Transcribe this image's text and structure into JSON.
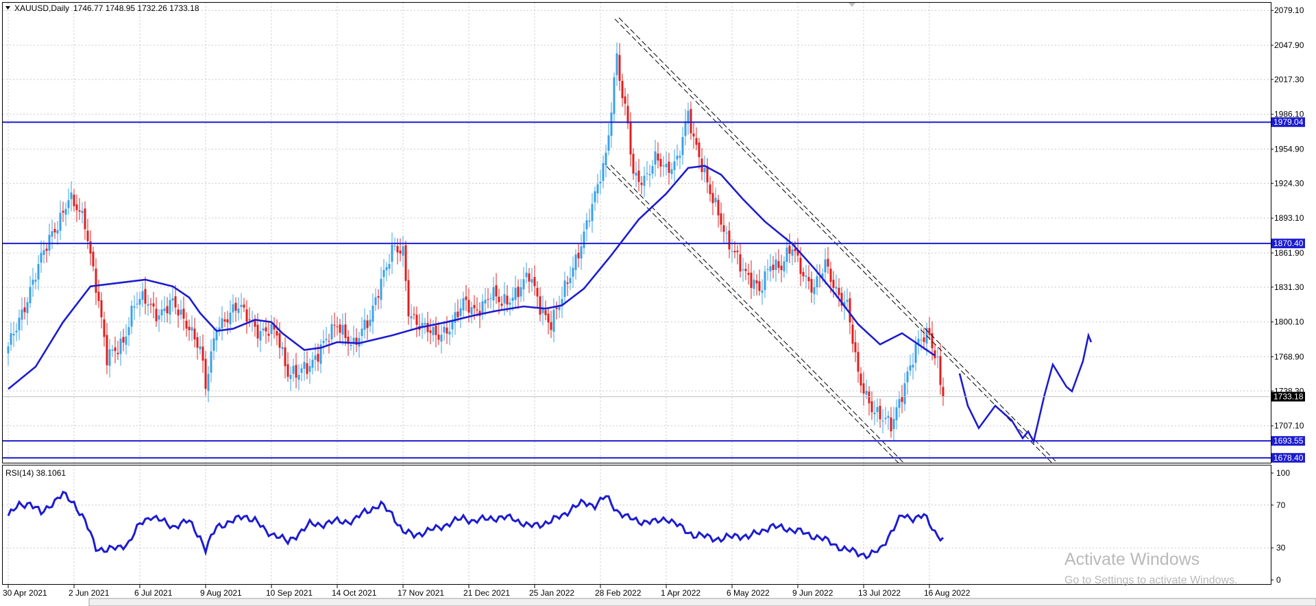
{
  "header": {
    "symbol": "XAUUSD,Daily",
    "ohlc": "1746.77 1748.95 1732.26 1733.18"
  },
  "rsi_header": "RSI(14) 38.1061",
  "watermark": {
    "line1": "Activate Windows",
    "line2": "Go to Settings to activate Windows."
  },
  "colors": {
    "bull": "#3aa0e8",
    "bear": "#e01e1e",
    "ma": "#1c1ccf",
    "level": "#1c1ccf",
    "price_tag_bg": "#000000",
    "grid": "#c8c8c8"
  },
  "chart_data": [
    {
      "type": "candlestick",
      "symbol": "XAUUSD",
      "timeframe": "Daily",
      "y_ticks": [
        "2079.10",
        "2047.90",
        "2017.30",
        "1986.10",
        "1954.90",
        "1924.30",
        "1893.10",
        "1861.90",
        "1831.30",
        "1800.10",
        "1768.90",
        "1738.30",
        "1707.10"
      ],
      "ylim": [
        1674,
        2086
      ],
      "x_ticks": [
        "30 Apr 2021",
        "2 Jun 2021",
        "6 Jul 2021",
        "9 Aug 2021",
        "10 Sep 2021",
        "14 Oct 2021",
        "17 Nov 2021",
        "21 Dec 2021",
        "25 Jan 2022",
        "28 Feb 2022",
        "1 Apr 2022",
        "6 May 2022",
        "9 Jun 2022",
        "13 Jul 2022",
        "16 Aug 2022"
      ],
      "x_tick_index": [
        0,
        24,
        48,
        72,
        96,
        120,
        144,
        168,
        192,
        216,
        240,
        264,
        288,
        312,
        336
      ],
      "last_price": "1733.18",
      "horizontal_levels": [
        {
          "value": 1979.04,
          "label": "1979.04"
        },
        {
          "value": 1870.4,
          "label": "1870.40"
        },
        {
          "value": 1693.55,
          "label": "1693.55"
        },
        {
          "value": 1678.4,
          "label": "1678.40"
        }
      ],
      "series": [
        {
          "kind": "close_keypoints",
          "points": [
            [
              0,
              1775
            ],
            [
              8,
              1830
            ],
            [
              16,
              1880
            ],
            [
              22,
              1910
            ],
            [
              28,
              1890
            ],
            [
              32,
              1835
            ],
            [
              36,
              1765
            ],
            [
              42,
              1785
            ],
            [
              46,
              1815
            ],
            [
              50,
              1820
            ],
            [
              55,
              1808
            ],
            [
              60,
              1815
            ],
            [
              66,
              1798
            ],
            [
              70,
              1775
            ],
            [
              72,
              1740
            ],
            [
              76,
              1798
            ],
            [
              80,
              1805
            ],
            [
              84,
              1812
            ],
            [
              88,
              1805
            ],
            [
              92,
              1790
            ],
            [
              98,
              1790
            ],
            [
              102,
              1757
            ],
            [
              106,
              1752
            ],
            [
              110,
              1760
            ],
            [
              114,
              1780
            ],
            [
              120,
              1795
            ],
            [
              126,
              1782
            ],
            [
              132,
              1800
            ],
            [
              136,
              1840
            ],
            [
              140,
              1865
            ],
            [
              144,
              1860
            ],
            [
              146,
              1810
            ],
            [
              152,
              1795
            ],
            [
              156,
              1785
            ],
            [
              160,
              1795
            ],
            [
              166,
              1815
            ],
            [
              170,
              1810
            ],
            [
              176,
              1825
            ],
            [
              180,
              1815
            ],
            [
              184,
              1825
            ],
            [
              190,
              1840
            ],
            [
              194,
              1815
            ],
            [
              198,
              1800
            ],
            [
              202,
              1820
            ],
            [
              206,
              1850
            ],
            [
              210,
              1880
            ],
            [
              214,
              1910
            ],
            [
              218,
              1950
            ],
            [
              222,
              2040
            ],
            [
              224,
              2000
            ],
            [
              226,
              1975
            ],
            [
              228,
              1930
            ],
            [
              232,
              1930
            ],
            [
              236,
              1945
            ],
            [
              240,
              1935
            ],
            [
              244,
              1948
            ],
            [
              248,
              1985
            ],
            [
              250,
              1960
            ],
            [
              254,
              1935
            ],
            [
              258,
              1905
            ],
            [
              262,
              1870
            ],
            [
              266,
              1860
            ],
            [
              270,
              1840
            ],
            [
              274,
              1825
            ],
            [
              278,
              1855
            ],
            [
              282,
              1850
            ],
            [
              286,
              1865
            ],
            [
              290,
              1845
            ],
            [
              294,
              1830
            ],
            [
              298,
              1850
            ],
            [
              302,
              1830
            ],
            [
              306,
              1815
            ],
            [
              310,
              1750
            ],
            [
              314,
              1730
            ],
            [
              318,
              1715
            ],
            [
              322,
              1705
            ],
            [
              325,
              1730
            ],
            [
              328,
              1755
            ],
            [
              332,
              1780
            ],
            [
              336,
              1790
            ],
            [
              339,
              1765
            ],
            [
              341,
              1733
            ]
          ]
        },
        {
          "kind": "moving_average",
          "points": [
            [
              0,
              1740
            ],
            [
              10,
              1760
            ],
            [
              20,
              1800
            ],
            [
              30,
              1832
            ],
            [
              40,
              1835
            ],
            [
              50,
              1838
            ],
            [
              60,
              1832
            ],
            [
              66,
              1822
            ],
            [
              70,
              1808
            ],
            [
              76,
              1792
            ],
            [
              82,
              1794
            ],
            [
              90,
              1802
            ],
            [
              96,
              1800
            ],
            [
              100,
              1790
            ],
            [
              108,
              1775
            ],
            [
              114,
              1777
            ],
            [
              120,
              1782
            ],
            [
              128,
              1781
            ],
            [
              140,
              1788
            ],
            [
              150,
              1795
            ],
            [
              160,
              1800
            ],
            [
              170,
              1806
            ],
            [
              178,
              1810
            ],
            [
              188,
              1814
            ],
            [
              196,
              1812
            ],
            [
              202,
              1815
            ],
            [
              210,
              1830
            ],
            [
              220,
              1860
            ],
            [
              230,
              1892
            ],
            [
              240,
              1915
            ],
            [
              248,
              1938
            ],
            [
              254,
              1940
            ],
            [
              260,
              1932
            ],
            [
              268,
              1910
            ],
            [
              276,
              1890
            ],
            [
              286,
              1870
            ],
            [
              294,
              1848
            ],
            [
              302,
              1824
            ],
            [
              310,
              1798
            ],
            [
              318,
              1780
            ],
            [
              326,
              1790
            ],
            [
              332,
              1780
            ],
            [
              338,
              1770
            ]
          ]
        }
      ],
      "channel": [
        {
          "from": [
            222,
            2072
          ],
          "to": [
            382,
            1673
          ]
        },
        {
          "from": [
            219,
            1940
          ],
          "to": [
            326,
            1673
          ]
        }
      ],
      "forecast_path": [
        [
          347,
          1754
        ],
        [
          350,
          1725
        ],
        [
          354,
          1705
        ],
        [
          360,
          1725
        ],
        [
          366,
          1712
        ],
        [
          370,
          1696
        ],
        [
          372,
          1702
        ],
        [
          374,
          1693
        ],
        [
          378,
          1735
        ],
        [
          381,
          1762
        ],
        [
          386,
          1742
        ],
        [
          388,
          1738
        ],
        [
          392,
          1765
        ],
        [
          394,
          1788
        ],
        [
          395,
          1782
        ]
      ]
    },
    {
      "type": "line",
      "name": "RSI(14)",
      "current": "38.1061",
      "y_ticks": [
        "100",
        "70",
        "30",
        "0"
      ],
      "ylim": [
        0,
        100
      ],
      "points": [
        [
          0,
          60
        ],
        [
          4,
          70
        ],
        [
          8,
          72
        ],
        [
          12,
          62
        ],
        [
          16,
          72
        ],
        [
          20,
          80
        ],
        [
          24,
          72
        ],
        [
          28,
          55
        ],
        [
          32,
          30
        ],
        [
          36,
          28
        ],
        [
          40,
          30
        ],
        [
          44,
          35
        ],
        [
          48,
          52
        ],
        [
          52,
          60
        ],
        [
          56,
          55
        ],
        [
          60,
          50
        ],
        [
          66,
          55
        ],
        [
          70,
          40
        ],
        [
          72,
          28
        ],
        [
          76,
          50
        ],
        [
          82,
          55
        ],
        [
          86,
          60
        ],
        [
          90,
          56
        ],
        [
          94,
          45
        ],
        [
          98,
          42
        ],
        [
          102,
          35
        ],
        [
          106,
          44
        ],
        [
          110,
          52
        ],
        [
          114,
          52
        ],
        [
          120,
          55
        ],
        [
          126,
          55
        ],
        [
          130,
          64
        ],
        [
          136,
          70
        ],
        [
          140,
          62
        ],
        [
          144,
          45
        ],
        [
          148,
          42
        ],
        [
          152,
          45
        ],
        [
          156,
          48
        ],
        [
          160,
          52
        ],
        [
          166,
          58
        ],
        [
          170,
          55
        ],
        [
          176,
          58
        ],
        [
          180,
          58
        ],
        [
          184,
          58
        ],
        [
          190,
          50
        ],
        [
          194,
          52
        ],
        [
          198,
          55
        ],
        [
          202,
          60
        ],
        [
          206,
          68
        ],
        [
          210,
          72
        ],
        [
          214,
          70
        ],
        [
          218,
          78
        ],
        [
          222,
          65
        ],
        [
          226,
          58
        ],
        [
          230,
          55
        ],
        [
          236,
          54
        ],
        [
          240,
          58
        ],
        [
          246,
          48
        ],
        [
          250,
          42
        ],
        [
          256,
          40
        ],
        [
          260,
          38
        ],
        [
          266,
          42
        ],
        [
          270,
          40
        ],
        [
          274,
          45
        ],
        [
          278,
          50
        ],
        [
          284,
          48
        ],
        [
          288,
          46
        ],
        [
          292,
          42
        ],
        [
          296,
          40
        ],
        [
          302,
          32
        ],
        [
          306,
          28
        ],
        [
          310,
          25
        ],
        [
          314,
          23
        ],
        [
          318,
          28
        ],
        [
          322,
          45
        ],
        [
          326,
          60
        ],
        [
          330,
          58
        ],
        [
          334,
          60
        ],
        [
          338,
          45
        ],
        [
          341,
          38
        ]
      ]
    }
  ]
}
